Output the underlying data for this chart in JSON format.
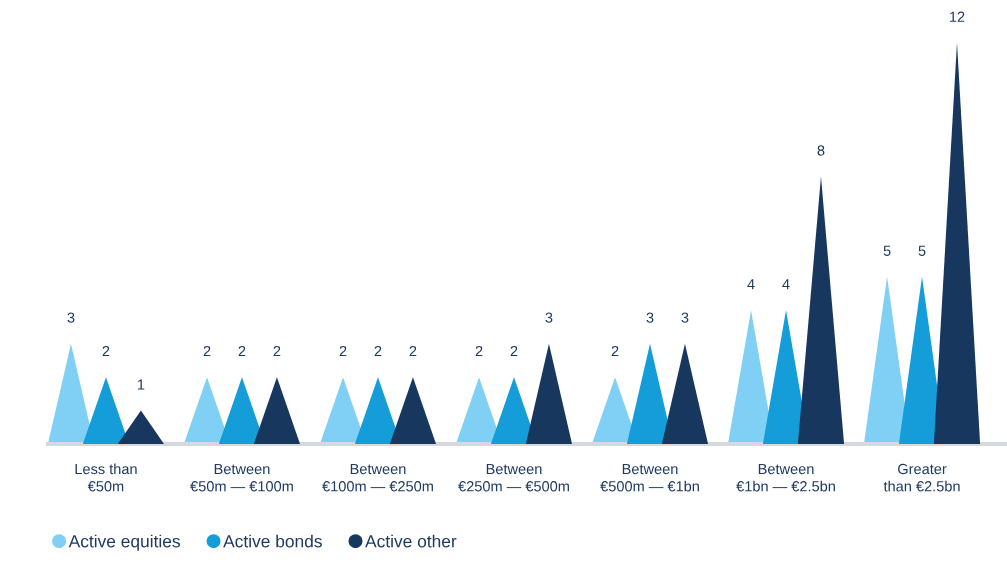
{
  "chart_data": {
    "type": "bar",
    "categories": [
      "Less than\n€50m",
      "Between\n€50m — €100m",
      "Between\n€100m — €250m",
      "Between\n€250m — €500m",
      "Between\n€500m — €1bn",
      "Between\n€1bn — €2.5bn",
      "Greater\nthan €2.5bn"
    ],
    "series": [
      {
        "name": "Active equities",
        "color": "#7fd0f4",
        "values": [
          3,
          2,
          2,
          2,
          2,
          4,
          5
        ]
      },
      {
        "name": "Active bonds",
        "color": "#149dd9",
        "values": [
          2,
          2,
          2,
          2,
          3,
          4,
          5
        ]
      },
      {
        "name": "Active other",
        "color": "#18375f",
        "values": [
          1,
          2,
          2,
          3,
          3,
          8,
          12
        ]
      }
    ],
    "data_labels": true,
    "legend": "bottom left"
  }
}
